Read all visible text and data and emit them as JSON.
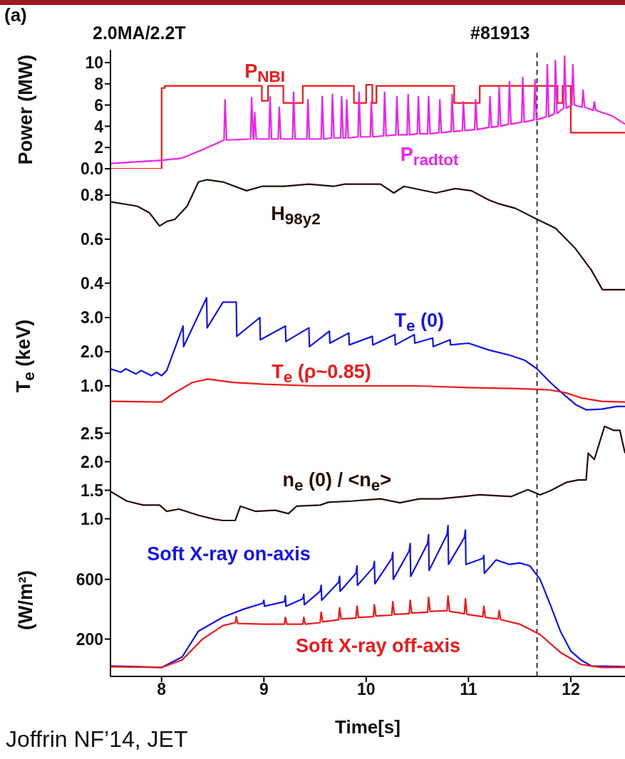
{
  "chart_data": [
    {
      "type": "line",
      "annotations": [
        "(a)",
        "2.0MA/2.2T",
        "#81913"
      ],
      "ylabel": "Power (MW)",
      "xlim": [
        7.5,
        12.53
      ],
      "xticks": [
        8,
        9,
        10,
        11,
        12
      ],
      "ylim": [
        0,
        11.2
      ],
      "yticks": [
        {
          "value": 0,
          "label": "0.0"
        },
        2,
        4,
        6,
        8,
        10
      ],
      "tick_labels": "y",
      "ref_lines": [
        {
          "axis": "x",
          "value": 11.67,
          "color": "#000000",
          "line_style": "dashed"
        }
      ],
      "series": [
        {
          "name": "P$_{NBI}$",
          "type": "step",
          "color": "#f01818",
          "x": [
            7.5,
            8.0,
            8.03,
            8.98,
            9.04,
            9.19,
            9.38,
            9.88,
            10.0,
            10.06,
            10.1,
            10.86,
            11.11,
            11.87,
            11.92,
            12.0,
            12.53
          ],
          "values": [
            0,
            7.6,
            7.8,
            6.4,
            7.8,
            6.2,
            7.8,
            6.2,
            7.9,
            6.2,
            7.8,
            6.2,
            7.8,
            6.2,
            7.8,
            3.4,
            3.4
          ]
        },
        {
          "name": "P$_{radtot}$",
          "color": "#f020f0",
          "x": [
            7.5,
            8.0,
            8.2,
            8.4,
            8.61,
            8.62,
            8.635,
            8.87,
            8.88,
            8.895,
            8.9,
            8.91,
            8.925,
            9.05,
            9.06,
            9.075,
            9.14,
            9.15,
            9.165,
            9.28,
            9.29,
            9.305,
            9.42,
            9.43,
            9.445,
            9.56,
            9.57,
            9.585,
            9.66,
            9.67,
            9.685,
            9.75,
            9.76,
            9.775,
            9.8,
            9.81,
            9.825,
            9.92,
            9.93,
            9.945,
            10.04,
            10.05,
            10.065,
            10.17,
            10.18,
            10.195,
            10.29,
            10.3,
            10.315,
            10.4,
            10.41,
            10.425,
            10.5,
            10.51,
            10.525,
            10.6,
            10.61,
            10.625,
            10.71,
            10.72,
            10.735,
            10.83,
            10.84,
            10.855,
            10.94,
            10.95,
            10.965,
            11.06,
            11.07,
            11.085,
            11.2,
            11.21,
            11.225,
            11.29,
            11.3,
            11.315,
            11.39,
            11.4,
            11.415,
            11.52,
            11.53,
            11.545,
            11.64,
            11.65,
            11.665,
            11.76,
            11.77,
            11.785,
            11.84,
            11.85,
            11.865,
            11.93,
            11.94,
            11.955,
            12.01,
            12.02,
            12.035,
            12.11,
            12.12,
            12.135,
            12.22,
            12.23,
            12.245,
            12.4,
            12.53
          ],
          "values": [
            0.5,
            0.8,
            1.0,
            1.8,
            2.7,
            6.5,
            2.7,
            2.8,
            6.7,
            2.8,
            2.8,
            5.3,
            2.8,
            2.8,
            6.8,
            2.8,
            2.8,
            5.8,
            2.8,
            2.8,
            7.2,
            2.8,
            2.8,
            6.5,
            2.8,
            2.8,
            6.8,
            2.8,
            2.9,
            7.0,
            2.9,
            2.9,
            6.8,
            2.9,
            2.9,
            6.5,
            2.9,
            3.0,
            7.2,
            3.0,
            3.0,
            6.3,
            3.0,
            3.1,
            7.2,
            3.1,
            3.2,
            6.8,
            3.2,
            3.2,
            7.0,
            3.2,
            3.3,
            6.8,
            3.3,
            3.3,
            6.8,
            3.3,
            3.4,
            6.5,
            3.4,
            3.5,
            7.0,
            3.5,
            3.6,
            6.3,
            3.6,
            3.7,
            6.5,
            3.7,
            3.9,
            6.8,
            3.9,
            4.0,
            7.7,
            4.0,
            4.2,
            8.2,
            4.2,
            4.4,
            8.6,
            4.4,
            4.6,
            8.4,
            4.6,
            4.9,
            9.8,
            4.9,
            5.2,
            10.2,
            5.2,
            5.7,
            10.6,
            5.7,
            6.0,
            9.8,
            6.0,
            5.8,
            7.4,
            5.8,
            5.5,
            6.3,
            5.5,
            5.0,
            4.2
          ]
        }
      ]
    },
    {
      "type": "line",
      "xlim": [
        7.5,
        12.53
      ],
      "xticks": [
        8,
        9,
        10,
        11,
        12
      ],
      "ylim": [
        0.36,
        0.92
      ],
      "yticks": [
        0.4,
        0.6,
        0.8
      ],
      "tick_labels": "y",
      "ref_lines": [
        {
          "axis": "x",
          "value": 11.67,
          "color": "#000000",
          "line_style": "dashed"
        }
      ],
      "series": [
        {
          "name": "H$_{98y2}$",
          "color": "#2a0c0c",
          "x": [
            7.5,
            7.76,
            7.88,
            7.98,
            8.05,
            8.13,
            8.25,
            8.36,
            8.44,
            8.6,
            8.83,
            8.98,
            9.2,
            9.44,
            9.68,
            9.79,
            10.02,
            10.14,
            10.27,
            10.37,
            10.68,
            10.87,
            11.03,
            11.19,
            11.3,
            11.46,
            11.67,
            11.85,
            12.04,
            12.2,
            12.31,
            12.43,
            12.53
          ],
          "values": [
            0.77,
            0.75,
            0.72,
            0.66,
            0.68,
            0.69,
            0.75,
            0.86,
            0.87,
            0.86,
            0.82,
            0.84,
            0.84,
            0.85,
            0.84,
            0.85,
            0.85,
            0.85,
            0.81,
            0.84,
            0.81,
            0.83,
            0.82,
            0.78,
            0.76,
            0.74,
            0.69,
            0.65,
            0.56,
            0.46,
            0.37,
            0.37,
            0.37
          ]
        }
      ]
    },
    {
      "type": "line",
      "ylabel": "T$_{e}$ (keV)",
      "xlim": [
        7.5,
        12.53
      ],
      "xticks": [
        8,
        9,
        10,
        11,
        12
      ],
      "ylim": [
        0,
        3.75
      ],
      "yticks": [
        {
          "value": 1,
          "label": "1.0"
        },
        {
          "value": 2,
          "label": "2.0"
        },
        {
          "value": 3,
          "label": "3.0"
        }
      ],
      "tick_labels": "y",
      "ref_lines": [
        {
          "axis": "x",
          "value": 11.67,
          "color": "#000000",
          "line_style": "dashed"
        }
      ],
      "series": [
        {
          "name": "T$_{e}$ (0)",
          "color": "#1414f0",
          "x": [
            7.5,
            7.6,
            7.65,
            7.75,
            7.8,
            7.9,
            7.95,
            8.0,
            8.05,
            8.21,
            8.215,
            8.44,
            8.445,
            8.6,
            8.73,
            8.735,
            8.96,
            8.965,
            9.21,
            9.215,
            9.44,
            9.445,
            9.64,
            9.645,
            9.83,
            9.835,
            10.06,
            10.065,
            10.28,
            10.285,
            10.47,
            10.475,
            10.65,
            10.655,
            10.82,
            10.825,
            11.0,
            11.2,
            11.4,
            11.55,
            11.67,
            11.8,
            11.95,
            12.05,
            12.15,
            12.3,
            12.45,
            12.53
          ],
          "values": [
            1.5,
            1.4,
            1.5,
            1.35,
            1.45,
            1.3,
            1.4,
            1.3,
            1.45,
            2.75,
            2.15,
            3.58,
            2.7,
            3.45,
            3.45,
            2.45,
            3.0,
            2.35,
            2.75,
            2.3,
            2.7,
            2.15,
            2.6,
            2.25,
            2.55,
            2.2,
            2.45,
            2.2,
            2.5,
            2.2,
            2.5,
            2.25,
            2.4,
            2.15,
            2.35,
            2.2,
            2.25,
            2.05,
            1.9,
            1.75,
            1.5,
            1.1,
            0.7,
            0.45,
            0.3,
            0.32,
            0.4,
            0.4
          ]
        },
        {
          "name": "T$_{e}$ (ρ~0.85)",
          "color": "#f01818",
          "x": [
            7.5,
            8.0,
            8.1,
            8.3,
            8.45,
            8.7,
            9.0,
            9.5,
            10.0,
            10.5,
            11.0,
            11.5,
            11.67,
            11.8,
            11.95,
            12.1,
            12.3,
            12.53
          ],
          "values": [
            0.55,
            0.53,
            0.75,
            1.1,
            1.2,
            1.1,
            1.05,
            1.0,
            1.0,
            1.0,
            0.95,
            0.92,
            0.9,
            0.88,
            0.8,
            0.65,
            0.55,
            0.53
          ]
        }
      ]
    },
    {
      "type": "line",
      "xlim": [
        7.5,
        12.53
      ],
      "xticks": [
        8,
        9,
        10,
        11,
        12
      ],
      "ylim": [
        0.92,
        2.73
      ],
      "yticks": [
        {
          "value": 1,
          "label": "1.0"
        },
        1.5,
        {
          "value": 2,
          "label": "2.0"
        },
        2.5
      ],
      "tick_labels": "y",
      "ref_lines": [
        {
          "axis": "x",
          "value": 11.67,
          "color": "#000000",
          "line_style": "dashed"
        }
      ],
      "series": [
        {
          "name": "n$_{e}$ (0) / <n$_{e}$>",
          "color": "#2a0c0c",
          "x": [
            7.5,
            7.66,
            7.82,
            7.98,
            8.05,
            8.17,
            8.36,
            8.52,
            8.6,
            8.72,
            8.77,
            8.92,
            9.11,
            9.24,
            9.32,
            9.55,
            9.63,
            9.86,
            10.14,
            10.33,
            10.52,
            10.72,
            10.95,
            11.11,
            11.42,
            11.58,
            11.7,
            11.8,
            11.96,
            12.07,
            12.15,
            12.17,
            12.23,
            12.33,
            12.42,
            12.48,
            12.53
          ],
          "values": [
            1.48,
            1.31,
            1.24,
            1.24,
            1.13,
            1.17,
            1.06,
            0.99,
            0.97,
            0.97,
            1.22,
            1.13,
            1.15,
            1.09,
            1.22,
            1.24,
            1.29,
            1.31,
            1.35,
            1.28,
            1.35,
            1.35,
            1.39,
            1.42,
            1.39,
            1.51,
            1.42,
            1.49,
            1.64,
            1.68,
            1.68,
            2.15,
            2.04,
            2.62,
            2.55,
            2.55,
            2.15
          ]
        }
      ]
    },
    {
      "type": "line",
      "ylabel": "(W/m²)",
      "xlabel": "Time[s]",
      "annotations": [
        "Joffrin NF’14, JET"
      ],
      "xlim": [
        7.5,
        12.53
      ],
      "xticks": [
        8,
        9,
        10,
        11,
        12
      ],
      "ylim": [
        -50,
        975
      ],
      "yticks": [
        200,
        600
      ],
      "ref_lines": [
        {
          "axis": "x",
          "value": 11.67,
          "color": "#000000",
          "line_style": "dashed"
        }
      ],
      "series": [
        {
          "name": "Soft X-ray on-axis",
          "color": "#1414f0",
          "x": [
            7.5,
            8.0,
            8.2,
            8.36,
            8.6,
            8.8,
            8.99,
            9.0,
            9.005,
            9.2,
            9.21,
            9.215,
            9.38,
            9.39,
            9.395,
            9.55,
            9.56,
            9.565,
            9.73,
            9.74,
            9.745,
            9.9,
            9.91,
            9.915,
            10.07,
            10.08,
            10.085,
            10.25,
            10.26,
            10.265,
            10.42,
            10.43,
            10.435,
            10.6,
            10.61,
            10.615,
            10.79,
            10.8,
            10.805,
            10.96,
            10.97,
            10.975,
            11.14,
            11.15,
            11.155,
            11.27,
            11.4,
            11.5,
            11.6,
            11.7,
            11.8,
            11.9,
            12.0,
            12.1,
            12.2,
            12.53
          ],
          "values": [
            20,
            10,
            80,
            253,
            347,
            400,
            440,
            460,
            420,
            450,
            490,
            420,
            470,
            500,
            430,
            520,
            560,
            460,
            580,
            620,
            520,
            640,
            690,
            560,
            680,
            720,
            570,
            740,
            780,
            600,
            790,
            840,
            620,
            840,
            900,
            660,
            900,
            960,
            700,
            880,
            930,
            700,
            740,
            760,
            640,
            730,
            700,
            710,
            690,
            600,
            430,
            250,
            120,
            60,
            20,
            15
          ]
        },
        {
          "name": "Soft X-ray off-axis",
          "color": "#f01818",
          "x": [
            7.5,
            8.0,
            8.2,
            8.4,
            8.6,
            8.72,
            8.73,
            8.745,
            9.0,
            9.2,
            9.21,
            9.225,
            9.38,
            9.39,
            9.405,
            9.55,
            9.56,
            9.575,
            9.73,
            9.74,
            9.755,
            9.9,
            9.91,
            9.925,
            10.07,
            10.08,
            10.095,
            10.25,
            10.26,
            10.275,
            10.42,
            10.43,
            10.445,
            10.6,
            10.61,
            10.625,
            10.79,
            10.8,
            10.815,
            10.96,
            10.97,
            10.985,
            11.14,
            11.15,
            11.165,
            11.29,
            11.3,
            11.315,
            11.5,
            11.7,
            11.9,
            12.1,
            12.3,
            12.53
          ],
          "values": [
            15,
            10,
            60,
            200,
            290,
            310,
            350,
            305,
            300,
            300,
            345,
            300,
            300,
            345,
            300,
            310,
            380,
            315,
            330,
            410,
            335,
            340,
            420,
            345,
            350,
            430,
            355,
            360,
            450,
            365,
            370,
            460,
            375,
            380,
            480,
            385,
            390,
            490,
            385,
            370,
            470,
            365,
            350,
            420,
            345,
            335,
            390,
            330,
            300,
            230,
            110,
            30,
            10,
            10
          ]
        }
      ]
    }
  ]
}
